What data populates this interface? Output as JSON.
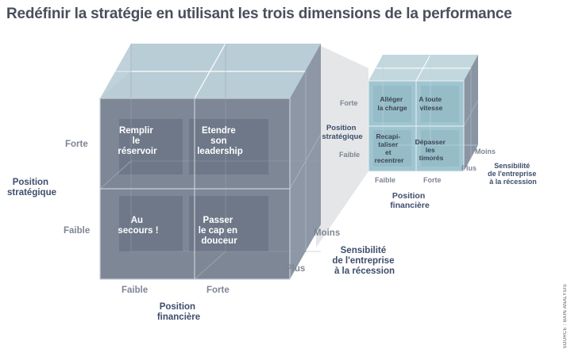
{
  "title": "Redéfinir la stratégie en utilisant les trois dimensions de la performance",
  "source": "SOURCE : BAIN ANALYSIS",
  "colors": {
    "front_face": "#7d8796",
    "cell_highlight": "#6e7888",
    "top_face": "#b9cdd6",
    "side_face": "#8d97a5",
    "small_front": "#9fc5d0",
    "small_side": "#8a95a3",
    "small_top": "#c3d8de",
    "zoom_band": "#e4e6e8"
  },
  "big_cube": {
    "cells": {
      "top_left": [
        "Remplir",
        "le",
        "réservoir"
      ],
      "top_right": [
        "Etendre",
        "son",
        "leadership"
      ],
      "bottom_left": [
        "Au",
        "secours !"
      ],
      "bottom_right": [
        "Passer",
        "le cap en",
        "douceur"
      ]
    },
    "y_axis": {
      "title": [
        "Position",
        "stratégique"
      ],
      "high": "Forte",
      "low": "Faible"
    },
    "x_axis": {
      "title": [
        "Position",
        "financière"
      ],
      "low": "Faible",
      "high": "Forte"
    },
    "z_axis": {
      "title": [
        "Sensibilité",
        "de l'entreprise",
        "à la récession"
      ],
      "near": "Plus",
      "far": "Moins"
    }
  },
  "small_cube": {
    "cells": {
      "top_left": [
        "Alléger",
        "la charge"
      ],
      "top_right": [
        "A toute",
        "vitesse"
      ],
      "bottom_left": [
        "Recapi-",
        "taliser",
        "et",
        "recentrer"
      ],
      "bottom_right": [
        "Dépasser",
        "les",
        "timorés"
      ]
    },
    "y_axis": {
      "title": [
        "Position",
        "stratégique"
      ],
      "high": "Forte",
      "low": "Faible"
    },
    "x_axis": {
      "title": [
        "Position",
        "financière"
      ],
      "low": "Faible",
      "high": "Forte"
    },
    "z_axis": {
      "title": [
        "Sensibilité",
        "de l'entreprise",
        "à la récession"
      ],
      "near": "Plus",
      "far": "Moins"
    }
  }
}
